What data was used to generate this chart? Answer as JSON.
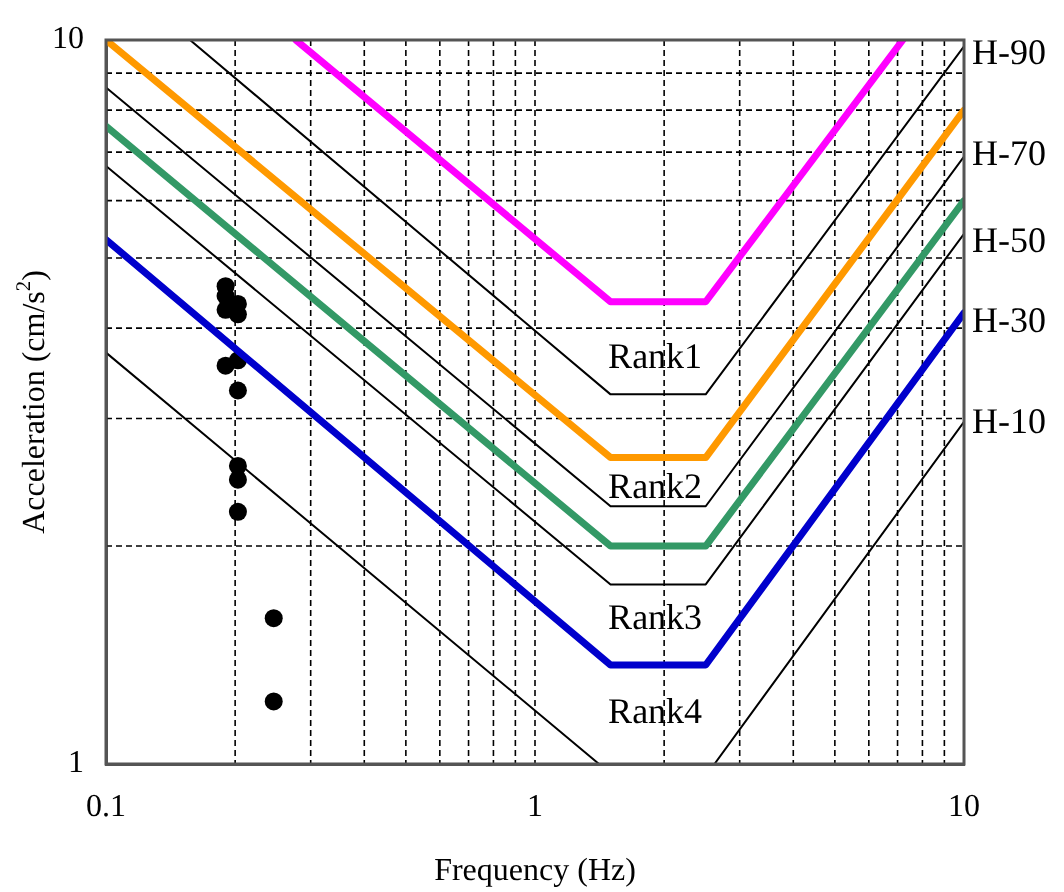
{
  "chart_data": {
    "type": "line",
    "xlabel": "Frequency (Hz)",
    "ylabel": "Acceleration (cm/s$^{2}$)",
    "log": "xy",
    "xlim": [
      0.1,
      10
    ],
    "ylim": [
      1,
      10
    ],
    "xticks": [
      0.1,
      {
        "value": 0.2,
        "label": null
      },
      {
        "value": 0.3,
        "label": null
      },
      {
        "value": 0.4,
        "label": null
      },
      {
        "value": 0.5,
        "label": null
      },
      {
        "value": 0.6,
        "label": null
      },
      {
        "value": 0.7,
        "label": null
      },
      {
        "value": 0.8,
        "label": null
      },
      {
        "value": 0.9,
        "label": null
      },
      1,
      {
        "value": 2,
        "label": null
      },
      {
        "value": 3,
        "label": null
      },
      {
        "value": 4,
        "label": null
      },
      {
        "value": 5,
        "label": null
      },
      {
        "value": 6,
        "label": null
      },
      {
        "value": 7,
        "label": null
      },
      {
        "value": 8,
        "label": null
      },
      {
        "value": 9,
        "label": null
      },
      10
    ],
    "yticks": [
      1,
      {
        "value": 2,
        "label": null
      },
      {
        "value": 3,
        "label": null
      },
      {
        "value": 4,
        "label": null
      },
      {
        "value": 5,
        "label": null
      },
      {
        "value": 6,
        "label": null
      },
      {
        "value": 7,
        "label": null
      },
      {
        "value": 8,
        "label": null
      },
      {
        "value": 9,
        "label": null
      },
      10
    ],
    "grid": true,
    "marker": "none",
    "series": [
      {
        "color": "#ff00ff",
        "x": [
          0.277,
          1.5,
          2.5,
          7.2
        ],
        "values": [
          10,
          4.35,
          4.35,
          10
        ]
      },
      {
        "color": "#ff9900",
        "x": [
          0.1,
          1.5,
          2.5,
          10
        ],
        "values": [
          10,
          2.65,
          2.65,
          8
        ]
      },
      {
        "color": "#339966",
        "x": [
          0.1,
          1.5,
          2.5,
          10
        ],
        "values": [
          7.6,
          2,
          2,
          6
        ]
      },
      {
        "color": "#0000cc",
        "x": [
          0.1,
          1.5,
          2.5,
          10
        ],
        "values": [
          5.3,
          1.37,
          1.37,
          4.2
        ]
      },
      {
        "color": "#000000",
        "x": [
          0.157,
          1.5,
          2.5,
          10
        ],
        "values": [
          10,
          3.24,
          3.24,
          9.8
        ]
      },
      {
        "color": "#000000",
        "x": [
          0.1,
          1.5,
          2.5,
          10
        ],
        "values": [
          8.6,
          2.27,
          2.27,
          6.9
        ]
      },
      {
        "color": "#000000",
        "x": [
          0.1,
          1.5,
          2.5,
          10
        ],
        "values": [
          6.7,
          1.77,
          1.77,
          5.4
        ]
      },
      {
        "color": "#000000",
        "x": [
          0.1,
          1.41,
          2,
          2.62,
          10
        ],
        "values": [
          3.7,
          1,
          null,
          1,
          2.97
        ]
      },
      {
        "type": "scatter",
        "marker": "circle",
        "color": "#000000",
        "x": [
          0.19,
          0.19,
          0.203,
          0.19,
          0.203,
          0.19,
          0.203,
          0.203,
          0.203,
          0.203,
          0.203,
          0.246,
          0.246
        ],
        "values": [
          4.57,
          4.43,
          4.32,
          4.24,
          4.18,
          3.55,
          3.61,
          3.28,
          2.58,
          2.47,
          2.23,
          1.59,
          1.22
        ]
      }
    ],
    "annotations": [
      "Rank1",
      "Rank2",
      "Rank3",
      "Rank4",
      "H-90",
      "H-70",
      "H-50",
      "H-30",
      "H-10"
    ]
  }
}
